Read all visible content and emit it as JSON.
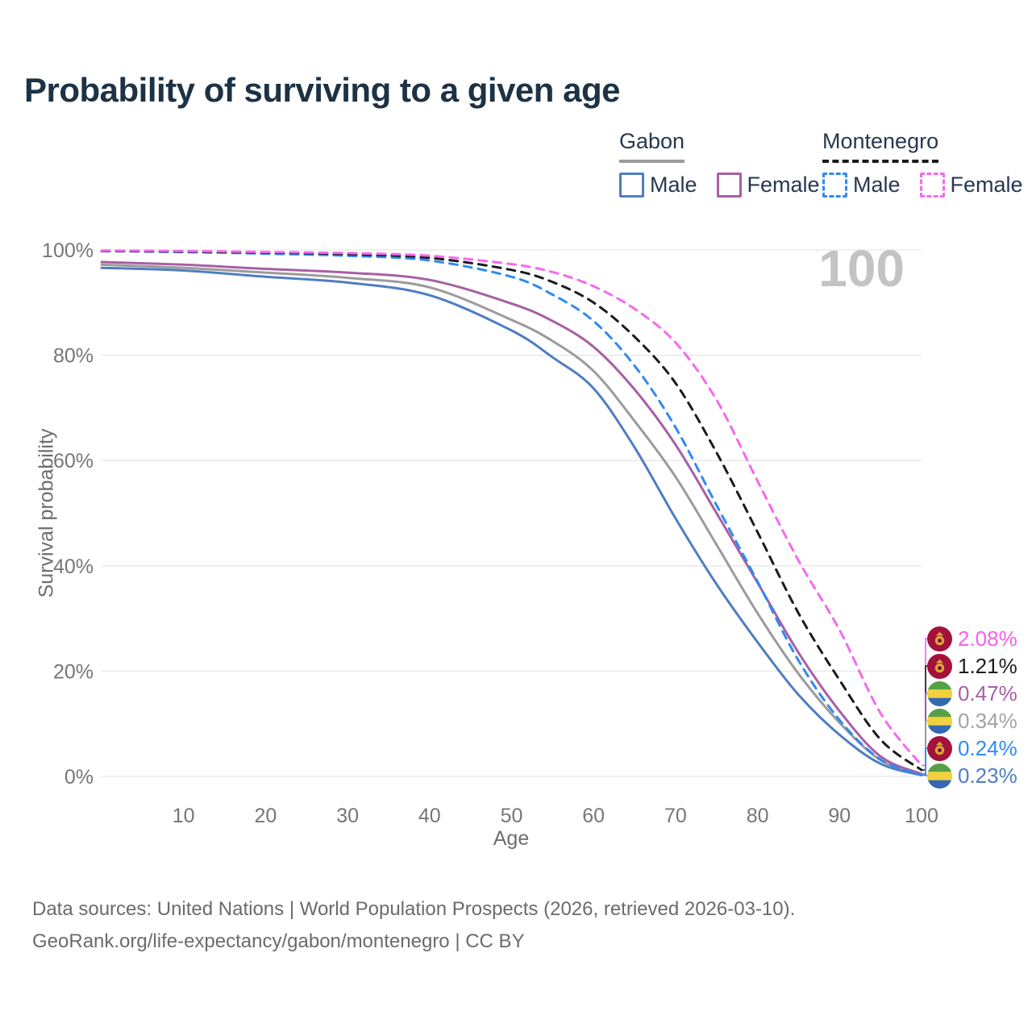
{
  "title": "Probability of surviving to a given age",
  "hover_age_label": "100",
  "legend": {
    "gabon": {
      "title": "Gabon",
      "male": "Male",
      "female": "Female"
    },
    "montenegro": {
      "title": "Montenegro",
      "male": "Male",
      "female": "Female"
    }
  },
  "axes": {
    "x": {
      "label": "Age",
      "range": [
        0,
        100
      ],
      "ticks": [
        10,
        20,
        30,
        40,
        50,
        60,
        70,
        80,
        90,
        100
      ]
    },
    "y": {
      "label": "Survival probability",
      "range": [
        0,
        100
      ],
      "tick_values": [
        0,
        20,
        40,
        60,
        80,
        100
      ],
      "tick_labels": [
        "0%",
        "20%",
        "40%",
        "60%",
        "80%",
        "100%"
      ]
    }
  },
  "chart_data": {
    "type": "line",
    "title": "Probability of surviving to a given age",
    "xlabel": "Age",
    "ylabel": "Survival probability",
    "xlim": [
      0,
      100
    ],
    "ylim": [
      0,
      100
    ],
    "grid": "horizontal-only",
    "x": [
      0,
      10,
      20,
      30,
      40,
      50,
      55,
      60,
      65,
      70,
      75,
      80,
      85,
      90,
      95,
      100
    ],
    "series": [
      {
        "name": "gabon_all",
        "label": "Gabon (both sexes)",
        "country": "Gabon",
        "sex": "all",
        "style": "solid",
        "color": "#9b9b9b",
        "values": [
          97.2,
          96.6,
          95.7,
          94.7,
          92.9,
          86.7,
          82.7,
          77.0,
          67.5,
          56.9,
          44.0,
          31.0,
          19.5,
          10.2,
          3.1,
          0.34
        ]
      },
      {
        "name": "gabon_male",
        "label": "Gabon Male",
        "country": "Gabon",
        "sex": "male",
        "style": "solid",
        "color": "#4f7dc3",
        "values": [
          96.6,
          96.1,
          94.9,
          93.8,
          91.4,
          84.7,
          79.6,
          73.7,
          62.5,
          49.0,
          36.5,
          25.5,
          15.5,
          7.9,
          2.4,
          0.23
        ]
      },
      {
        "name": "gabon_female",
        "label": "Gabon Female",
        "country": "Gabon",
        "sex": "female",
        "style": "solid",
        "color": "#a85fa5",
        "values": [
          97.7,
          97.2,
          96.4,
          95.7,
          94.3,
          89.8,
          86.5,
          81.6,
          73.5,
          63.0,
          50.0,
          36.8,
          23.5,
          12.4,
          3.8,
          0.47
        ]
      },
      {
        "name": "montenegro_male",
        "label": "Montenegro Male",
        "country": "Montenegro",
        "sex": "male",
        "style": "dashed",
        "color": "#2f8af2",
        "values": [
          99.8,
          99.6,
          99.3,
          98.9,
          98.0,
          94.9,
          91.5,
          86.5,
          78.0,
          66.3,
          51.5,
          37.0,
          22.0,
          10.7,
          3.2,
          0.24
        ]
      },
      {
        "name": "montenegro_all",
        "label": "Montenegro (both sexes)",
        "country": "Montenegro",
        "sex": "all",
        "style": "dashed",
        "color": "#1b1b1b",
        "values": [
          99.8,
          99.7,
          99.5,
          99.2,
          98.5,
          96.2,
          93.9,
          90.0,
          83.5,
          74.7,
          61.5,
          46.4,
          31.0,
          18.3,
          7.0,
          1.21
        ]
      },
      {
        "name": "montenegro_female",
        "label": "Montenegro Female",
        "country": "Montenegro",
        "sex": "female",
        "style": "dashed",
        "color": "#f668ef",
        "values": [
          99.9,
          99.8,
          99.6,
          99.4,
          98.9,
          97.3,
          95.8,
          93.1,
          88.8,
          82.4,
          71.5,
          56.1,
          41.0,
          27.8,
          12.0,
          2.08
        ]
      }
    ],
    "legend_position": "top-right",
    "annotations": {
      "hover_age": "100"
    }
  },
  "end_labels": [
    {
      "series": "montenegro_female",
      "flag": "montenegro",
      "value": "2.08%",
      "color": "#f65fef"
    },
    {
      "series": "montenegro_all",
      "flag": "montenegro",
      "value": "1.21%",
      "color": "#1c1c1c"
    },
    {
      "series": "gabon_female",
      "flag": "gabon",
      "value": "0.47%",
      "color": "#a85fa5"
    },
    {
      "series": "gabon_all",
      "flag": "gabon",
      "value": "0.34%",
      "color": "#a3a3a3"
    },
    {
      "series": "montenegro_male",
      "flag": "montenegro",
      "value": "0.24%",
      "color": "#2f8af2"
    },
    {
      "series": "gabon_male",
      "flag": "gabon",
      "value": "0.23%",
      "color": "#4f7dc3"
    }
  ],
  "colors": {
    "gabon_underline": "#9b9b9b",
    "montenegro_underline": "#1b1b1b",
    "gabon_male_box": "#4f7dc3",
    "gabon_female_box": "#a85fa5",
    "montenegro_male_box": "#2f8af2",
    "montenegro_female_box": "#f668ef",
    "gridline": "#e7e7e7",
    "tick_text": "#767676",
    "big_label": "#c3c3c3"
  },
  "footer": {
    "line1": "Data sources: United Nations | World Population Prospects (2026, retrieved 2026-03-10).",
    "line2": "GeoRank.org/life-expectancy/gabon/montenegro | CC BY"
  }
}
